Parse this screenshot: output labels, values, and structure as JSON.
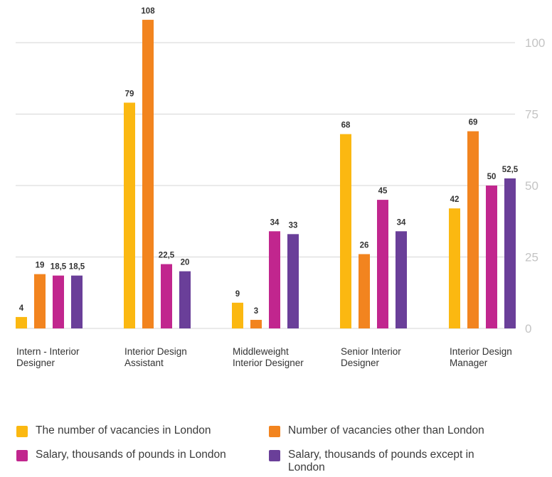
{
  "chart_data": {
    "type": "bar",
    "categories": [
      [
        "Intern - Interior",
        "Designer"
      ],
      [
        "Interior Design",
        "Assistant"
      ],
      [
        "Middleweight",
        "Interior Designer"
      ],
      [
        "Senior Interior",
        "Designer"
      ],
      [
        "Interior Design",
        "Manager"
      ]
    ],
    "series": [
      {
        "name": "The number of vacancies in London",
        "color": "#fbb811",
        "values": [
          4,
          79,
          9,
          68,
          42
        ],
        "labels": [
          "4",
          "79",
          "9",
          "68",
          "42"
        ]
      },
      {
        "name": "Number of vacancies other than London",
        "color": "#f2841f",
        "values": [
          19,
          108,
          3,
          26,
          69
        ],
        "labels": [
          "19",
          "108",
          "3",
          "26",
          "69"
        ]
      },
      {
        "name": "Salary, thousands of pounds in London",
        "color": "#c1268e",
        "values": [
          18.5,
          22.5,
          34,
          45,
          50
        ],
        "labels": [
          "18,5",
          "22,5",
          "34",
          "45",
          "50"
        ]
      },
      {
        "name": "Salary, thousands of pounds except in London",
        "color": "#6a3f99",
        "values": [
          18.5,
          20,
          33,
          34,
          52.5
        ],
        "labels": [
          "18,5",
          "20",
          "33",
          "34",
          "52,5"
        ]
      }
    ],
    "y_ticks": [
      0,
      25,
      50,
      75,
      100
    ],
    "ylim": [
      0,
      110
    ],
    "grid": true,
    "y_axis_side": "right",
    "legend_position": "bottom",
    "colors": {
      "grid": "#d6d6d6",
      "tick_label": "#c4c4c4",
      "value_label": "#333333"
    }
  },
  "legend": {
    "items": [
      {
        "label": "The number of vacancies in London",
        "color": "#fbb811"
      },
      {
        "label": "Number of vacancies other than London",
        "color": "#f2841f"
      },
      {
        "label": "Salary, thousands of pounds in London",
        "color": "#c1268e"
      },
      {
        "label": "Salary, thousands of pounds except in London",
        "color": "#6a3f99"
      }
    ]
  }
}
